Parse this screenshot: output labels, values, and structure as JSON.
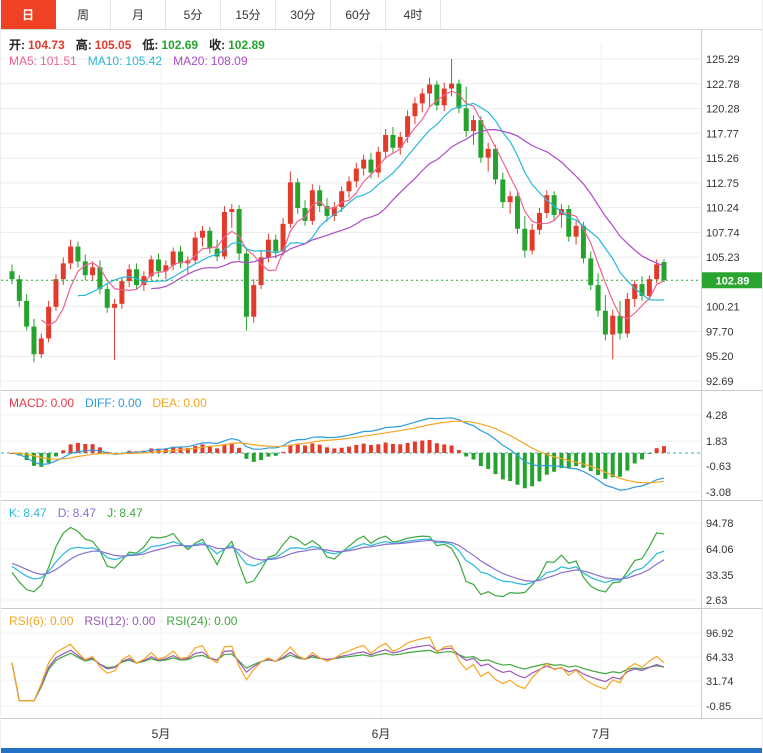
{
  "toolbar": {
    "tabs": [
      "日",
      "周",
      "月",
      "5分",
      "15分",
      "30分",
      "60分",
      "4时"
    ],
    "active": "日"
  },
  "main_panel": {
    "ohlc": {
      "open": {
        "label": "开:",
        "value": "104.73"
      },
      "high": {
        "label": "高:",
        "value": "105.05"
      },
      "low": {
        "label": "低:",
        "value": "102.69"
      },
      "close": {
        "label": "收:",
        "value": "102.89"
      }
    },
    "ma": {
      "ma5": {
        "label": "MA5:",
        "value": "101.51"
      },
      "ma10": {
        "label": "MA10:",
        "value": "105.42"
      },
      "ma20": {
        "label": "MA20:",
        "value": "108.09"
      }
    },
    "current_price": "102.89",
    "y_axis": [
      "125.29",
      "122.78",
      "120.28",
      "117.77",
      "115.26",
      "112.75",
      "110.24",
      "107.74",
      "105.23",
      "100.21",
      "97.70",
      "95.20",
      "92.69"
    ]
  },
  "macd_panel": {
    "labels": {
      "macd": {
        "label": "MACD:",
        "value": "0.00"
      },
      "diff": {
        "label": "DIFF:",
        "value": "0.00"
      },
      "dea": {
        "label": "DEA:",
        "value": "0.00"
      }
    },
    "y_axis": [
      "4.28",
      "1.83",
      "-0.63",
      "-3.08"
    ]
  },
  "kdj_panel": {
    "labels": {
      "k": {
        "label": "K:",
        "value": "8.47"
      },
      "d": {
        "label": "D:",
        "value": "8.47"
      },
      "j": {
        "label": "J:",
        "value": "8.47"
      }
    },
    "y_axis": [
      "94.78",
      "64.06",
      "33.35",
      "2.63"
    ]
  },
  "rsi_panel": {
    "labels": {
      "rsi6": {
        "label": "RSI(6):",
        "value": "0.00"
      },
      "rsi12": {
        "label": "RSI(12):",
        "value": "0.00"
      },
      "rsi24": {
        "label": "RSI(24):",
        "value": "0.00"
      }
    },
    "y_axis": [
      "96.92",
      "64.33",
      "31.74",
      "-0.85"
    ]
  },
  "x_axis": {
    "labels": [
      "5月",
      "6月",
      "7月"
    ]
  },
  "colors": {
    "up": "#e23b2c",
    "down": "#26a32f",
    "ma5": "#f0628f",
    "ma10": "#29b9d8",
    "ma20": "#ad4bc6",
    "macd_label": "#e53945",
    "diff": "#2d9cdb",
    "dea": "#f5a623",
    "k": "#29b9d8",
    "d": "#8d6fd1",
    "j": "#3fa83f",
    "rsi6": "#f5a623",
    "rsi12": "#9b59b6",
    "rsi24": "#3fa83f",
    "accent_tab": "#ef4123",
    "price_marker_bg": "#2aa52f",
    "bottom_bar": "#2472c8",
    "grid": "#ececec",
    "separator": "#cccccc",
    "axis_text": "#333333"
  },
  "chart_data": {
    "type": "candlestick",
    "title": "Daily OHLC candlestick chart with MA5/MA10/MA20 overlays and MACD, KDJ, RSI sub-panels",
    "x_axis_months": [
      "5月",
      "6月",
      "7月"
    ],
    "ylim": [
      92.69,
      125.29
    ],
    "ma_periods": [
      5,
      10,
      20
    ],
    "rsi_periods": [
      6,
      12,
      24
    ],
    "last_bar": {
      "open": 104.73,
      "high": 105.05,
      "low": 102.69,
      "close": 102.89
    },
    "candles": [
      [
        103.8,
        104.5,
        102.5,
        103.0
      ],
      [
        103.0,
        103.4,
        100.2,
        100.8
      ],
      [
        100.8,
        101.5,
        97.8,
        98.2
      ],
      [
        98.2,
        99.0,
        94.6,
        95.4
      ],
      [
        95.4,
        97.5,
        95.0,
        97.0
      ],
      [
        97.0,
        100.8,
        96.6,
        100.2
      ],
      [
        100.2,
        103.5,
        99.8,
        103.0
      ],
      [
        103.0,
        105.2,
        102.4,
        104.6
      ],
      [
        104.6,
        107.0,
        104.0,
        106.3
      ],
      [
        106.3,
        106.8,
        104.2,
        104.8
      ],
      [
        104.8,
        105.5,
        102.9,
        103.4
      ],
      [
        103.4,
        104.8,
        102.8,
        104.2
      ],
      [
        104.2,
        104.9,
        101.5,
        102.0
      ],
      [
        102.0,
        102.6,
        99.6,
        100.1
      ],
      [
        100.1,
        101.0,
        94.8,
        100.5
      ],
      [
        100.5,
        103.2,
        100.0,
        102.8
      ],
      [
        102.8,
        104.5,
        102.2,
        104.0
      ],
      [
        104.0,
        104.6,
        101.9,
        102.4
      ],
      [
        102.4,
        103.8,
        101.8,
        103.3
      ],
      [
        103.3,
        105.4,
        102.9,
        105.0
      ],
      [
        105.0,
        105.6,
        103.2,
        103.8
      ],
      [
        103.8,
        104.9,
        103.0,
        104.4
      ],
      [
        104.4,
        106.2,
        103.9,
        105.8
      ],
      [
        105.8,
        106.4,
        104.1,
        104.6
      ],
      [
        104.6,
        105.3,
        103.5,
        104.9
      ],
      [
        104.9,
        107.8,
        104.5,
        107.2
      ],
      [
        107.2,
        108.4,
        106.3,
        107.9
      ],
      [
        107.9,
        108.3,
        105.6,
        106.1
      ],
      [
        106.1,
        107.0,
        104.8,
        105.3
      ],
      [
        105.3,
        110.4,
        105.0,
        109.8
      ],
      [
        109.8,
        110.6,
        108.2,
        110.1
      ],
      [
        110.1,
        110.5,
        104.9,
        105.6
      ],
      [
        105.6,
        106.2,
        97.8,
        99.2
      ],
      [
        99.2,
        103.0,
        98.6,
        102.4
      ],
      [
        102.4,
        105.8,
        102.0,
        105.2
      ],
      [
        105.2,
        107.6,
        104.7,
        107.0
      ],
      [
        107.0,
        107.5,
        105.1,
        105.8
      ],
      [
        105.8,
        109.2,
        105.4,
        108.6
      ],
      [
        108.6,
        113.9,
        108.2,
        112.8
      ],
      [
        112.8,
        113.2,
        109.6,
        110.2
      ],
      [
        110.2,
        111.0,
        108.4,
        108.9
      ],
      [
        108.9,
        112.6,
        108.5,
        112.0
      ],
      [
        112.0,
        112.5,
        109.8,
        110.4
      ],
      [
        110.4,
        111.2,
        108.8,
        109.4
      ],
      [
        109.4,
        110.8,
        108.9,
        110.3
      ],
      [
        110.3,
        112.4,
        109.8,
        111.9
      ],
      [
        111.9,
        113.4,
        111.2,
        112.9
      ],
      [
        112.9,
        114.8,
        112.3,
        114.2
      ],
      [
        114.2,
        115.6,
        113.5,
        115.1
      ],
      [
        115.1,
        115.8,
        113.2,
        113.8
      ],
      [
        113.8,
        116.4,
        113.3,
        115.9
      ],
      [
        115.9,
        118.2,
        115.2,
        117.6
      ],
      [
        117.6,
        118.4,
        115.8,
        116.3
      ],
      [
        116.3,
        117.9,
        115.6,
        117.4
      ],
      [
        117.4,
        120.1,
        116.8,
        119.5
      ],
      [
        119.5,
        121.4,
        118.7,
        120.8
      ],
      [
        120.8,
        122.3,
        119.9,
        121.8
      ],
      [
        121.8,
        123.4,
        120.4,
        122.7
      ],
      [
        122.7,
        123.1,
        120.1,
        120.6
      ],
      [
        120.6,
        122.9,
        120.0,
        122.3
      ],
      [
        122.3,
        125.29,
        121.5,
        122.8
      ],
      [
        122.8,
        123.2,
        119.8,
        120.3
      ],
      [
        120.3,
        122.5,
        117.4,
        118.0
      ],
      [
        118.0,
        119.6,
        116.6,
        119.1
      ],
      [
        119.1,
        119.5,
        114.8,
        115.3
      ],
      [
        115.3,
        116.8,
        113.9,
        116.2
      ],
      [
        116.2,
        116.6,
        112.6,
        113.1
      ],
      [
        113.1,
        113.8,
        110.2,
        110.8
      ],
      [
        110.8,
        111.9,
        109.6,
        111.4
      ],
      [
        111.4,
        111.8,
        107.6,
        108.1
      ],
      [
        108.1,
        109.4,
        105.2,
        105.9
      ],
      [
        105.9,
        108.6,
        105.5,
        108.0
      ],
      [
        108.0,
        110.2,
        107.5,
        109.7
      ],
      [
        109.7,
        112.0,
        109.2,
        111.5
      ],
      [
        111.5,
        111.9,
        109.0,
        109.5
      ],
      [
        109.5,
        110.6,
        108.2,
        110.1
      ],
      [
        110.1,
        110.5,
        106.8,
        107.3
      ],
      [
        107.3,
        108.9,
        106.5,
        108.4
      ],
      [
        108.4,
        108.8,
        104.6,
        105.1
      ],
      [
        105.1,
        105.8,
        101.9,
        102.4
      ],
      [
        102.4,
        103.6,
        99.2,
        99.8
      ],
      [
        99.8,
        101.4,
        96.8,
        97.4
      ],
      [
        97.4,
        99.9,
        94.9,
        99.3
      ],
      [
        99.3,
        100.8,
        96.9,
        97.5
      ],
      [
        97.5,
        101.6,
        97.1,
        101.0
      ],
      [
        101.0,
        102.9,
        100.2,
        102.5
      ],
      [
        102.5,
        103.3,
        100.8,
        101.3
      ],
      [
        101.3,
        103.4,
        100.9,
        103.0
      ],
      [
        103.0,
        105.0,
        102.6,
        104.5
      ],
      [
        104.73,
        105.05,
        102.69,
        102.89
      ]
    ]
  }
}
